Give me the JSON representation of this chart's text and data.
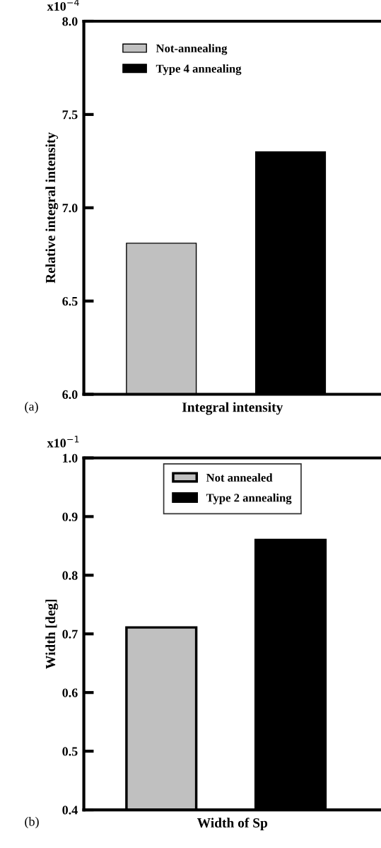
{
  "chart_data": [
    {
      "type": "bar",
      "ylabel": "Relative integral intensity",
      "xlabel": "Integral intensity",
      "categories": [
        null
      ],
      "series": [
        {
          "name": "Not-annealing",
          "color": "#c0c0c0",
          "values": [
            6.81
          ]
        },
        {
          "name": "Type 4 annealing",
          "color": "#000000",
          "values": [
            7.3
          ]
        }
      ],
      "ylim": [
        6.0,
        8.0
      ],
      "yticks": [
        {
          "value": 6.0,
          "label": "6.0"
        },
        6.5,
        {
          "value": 7.0,
          "label": "7.0"
        },
        7.5,
        {
          "value": 8.0,
          "label": "8.0"
        }
      ],
      "tick_labels": "y",
      "grid": false,
      "legend": "top left",
      "annotations": [
        "(a)",
        "x10$^{−4}$"
      ]
    },
    {
      "type": "bar",
      "ylabel": "Width [deg]",
      "xlabel": "Width of Sp",
      "categories": [
        null
      ],
      "series": [
        {
          "name": "Not annealed",
          "color": "#c0c0c0",
          "values": [
            0.711
          ]
        },
        {
          "name": "Type 2 annealing",
          "color": "#000000",
          "values": [
            0.86
          ]
        }
      ],
      "ylim": [
        0.4,
        1.0
      ],
      "yticks": [
        0.4,
        0.5,
        0.6,
        0.7,
        0.8,
        0.9,
        {
          "value": 1.0,
          "label": "1.0"
        }
      ],
      "tick_labels": "y",
      "grid": false,
      "legend": "top",
      "annotations": [
        "(b)",
        "x10$^{−1}$"
      ]
    }
  ]
}
